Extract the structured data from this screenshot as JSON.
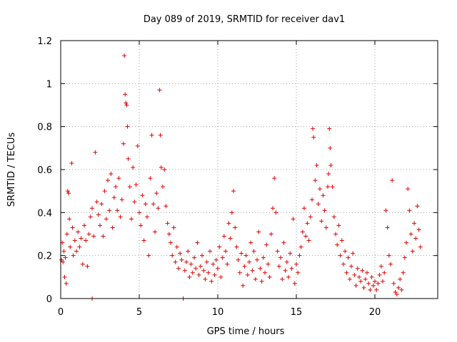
{
  "chart_data": {
    "type": "scatter",
    "title": "Day 089 of 2019, SRMTID for receiver dav1",
    "xlabel": "GPS time / hours",
    "ylabel": "SRMTID / TECUs",
    "xlim": [
      0,
      24
    ],
    "ylim": [
      0,
      1.2
    ],
    "x_ticks": [
      0,
      5,
      10,
      15,
      20
    ],
    "x_tick_labels": [
      "0",
      "5",
      "10",
      "15",
      "20"
    ],
    "y_ticks": [
      0,
      0.2,
      0.4,
      0.6,
      0.8,
      1.0,
      1.2
    ],
    "y_tick_labels": [
      "0",
      "0.2",
      "0.4",
      "0.6",
      "0.8",
      "1",
      "1.2"
    ],
    "grid": true,
    "marker": "+",
    "marker_color": "#e00000",
    "series": [
      {
        "name": "SRMTID",
        "points": [
          [
            0.05,
            0.18
          ],
          [
            0.1,
            0.26
          ],
          [
            0.15,
            0.17
          ],
          [
            0.2,
            0.22
          ],
          [
            0.25,
            0.1
          ],
          [
            0.3,
            0.19
          ],
          [
            0.35,
            0.07
          ],
          [
            0.4,
            0.3
          ],
          [
            0.45,
            0.5
          ],
          [
            0.5,
            0.49
          ],
          [
            0.55,
            0.37
          ],
          [
            0.6,
            0.24
          ],
          [
            0.7,
            0.63
          ],
          [
            0.75,
            0.33
          ],
          [
            0.8,
            0.2
          ],
          [
            0.9,
            0.27
          ],
          [
            1.0,
            0.22
          ],
          [
            1.1,
            0.31
          ],
          [
            1.2,
            0.24
          ],
          [
            1.3,
            0.28
          ],
          [
            1.4,
            0.16
          ],
          [
            1.5,
            0.34
          ],
          [
            1.6,
            0.27
          ],
          [
            1.7,
            0.15
          ],
          [
            1.8,
            0.3
          ],
          [
            1.9,
            0.38
          ],
          [
            2.0,
            0.42
          ],
          [
            2.0,
            0.0
          ],
          [
            2.1,
            0.29
          ],
          [
            2.2,
            0.68
          ],
          [
            2.3,
            0.45
          ],
          [
            2.4,
            0.39
          ],
          [
            2.5,
            0.34
          ],
          [
            2.6,
            0.44
          ],
          [
            2.7,
            0.29
          ],
          [
            2.8,
            0.5
          ],
          [
            2.9,
            0.37
          ],
          [
            3.0,
            0.55
          ],
          [
            3.1,
            0.41
          ],
          [
            3.2,
            0.58
          ],
          [
            3.3,
            0.33
          ],
          [
            3.4,
            0.47
          ],
          [
            3.5,
            0.52
          ],
          [
            3.6,
            0.41
          ],
          [
            3.7,
            0.56
          ],
          [
            3.8,
            0.38
          ],
          [
            3.9,
            0.46
          ],
          [
            4.0,
            0.72
          ],
          [
            4.05,
            1.13
          ],
          [
            4.1,
            0.95
          ],
          [
            4.15,
            0.91
          ],
          [
            4.2,
            0.9
          ],
          [
            4.25,
            0.8
          ],
          [
            4.3,
            0.65
          ],
          [
            4.4,
            0.52
          ],
          [
            4.5,
            0.37
          ],
          [
            4.6,
            0.61
          ],
          [
            4.7,
            0.45
          ],
          [
            4.8,
            0.53
          ],
          [
            4.9,
            0.71
          ],
          [
            5.0,
            0.4
          ],
          [
            5.1,
            0.34
          ],
          [
            5.2,
            0.48
          ],
          [
            5.3,
            0.27
          ],
          [
            5.4,
            0.44
          ],
          [
            5.5,
            0.38
          ],
          [
            5.6,
            0.2
          ],
          [
            5.7,
            0.56
          ],
          [
            5.8,
            0.76
          ],
          [
            5.9,
            0.44
          ],
          [
            6.0,
            0.31
          ],
          [
            6.1,
            0.49
          ],
          [
            6.2,
            0.42
          ],
          [
            6.3,
            0.97
          ],
          [
            6.35,
            0.76
          ],
          [
            6.4,
            0.61
          ],
          [
            6.5,
            0.52
          ],
          [
            6.6,
            0.6
          ],
          [
            6.7,
            0.43
          ],
          [
            6.8,
            0.35
          ],
          [
            6.9,
            0.3
          ],
          [
            7.0,
            0.26
          ],
          [
            7.1,
            0.2
          ],
          [
            7.2,
            0.33
          ],
          [
            7.3,
            0.17
          ],
          [
            7.4,
            0.24
          ],
          [
            7.5,
            0.14
          ],
          [
            7.6,
            0.21
          ],
          [
            7.7,
            0.18
          ],
          [
            7.8,
            0.0
          ],
          [
            7.9,
            0.13
          ],
          [
            8.0,
            0.17
          ],
          [
            8.1,
            0.22
          ],
          [
            8.2,
            0.1
          ],
          [
            8.3,
            0.16
          ],
          [
            8.4,
            0.12
          ],
          [
            8.5,
            0.19
          ],
          [
            8.6,
            0.14
          ],
          [
            8.7,
            0.26
          ],
          [
            8.8,
            0.11
          ],
          [
            8.9,
            0.15
          ],
          [
            9.0,
            0.2
          ],
          [
            9.1,
            0.13
          ],
          [
            9.2,
            0.09
          ],
          [
            9.3,
            0.17
          ],
          [
            9.4,
            0.12
          ],
          [
            9.5,
            0.22
          ],
          [
            9.6,
            0.08
          ],
          [
            9.7,
            0.16
          ],
          [
            9.8,
            0.11
          ],
          [
            9.9,
            0.18
          ],
          [
            10.0,
            0.14
          ],
          [
            10.1,
            0.24
          ],
          [
            10.2,
            0.1
          ],
          [
            10.3,
            0.19
          ],
          [
            10.4,
            0.29
          ],
          [
            10.5,
            0.22
          ],
          [
            10.6,
            0.16
          ],
          [
            10.7,
            0.35
          ],
          [
            10.8,
            0.28
          ],
          [
            10.9,
            0.4
          ],
          [
            11.0,
            0.5
          ],
          [
            11.1,
            0.33
          ],
          [
            11.2,
            0.24
          ],
          [
            11.3,
            0.18
          ],
          [
            11.4,
            0.12
          ],
          [
            11.5,
            0.21
          ],
          [
            11.6,
            0.06
          ],
          [
            11.7,
            0.15
          ],
          [
            11.8,
            0.2
          ],
          [
            11.9,
            0.11
          ],
          [
            12.0,
            0.17
          ],
          [
            12.1,
            0.26
          ],
          [
            12.2,
            0.13
          ],
          [
            12.3,
            0.22
          ],
          [
            12.4,
            0.09
          ],
          [
            12.5,
            0.18
          ],
          [
            12.6,
            0.31
          ],
          [
            12.7,
            0.14
          ],
          [
            12.8,
            0.08
          ],
          [
            12.9,
            0.19
          ],
          [
            13.0,
            0.12
          ],
          [
            13.1,
            0.25
          ],
          [
            13.2,
            0.16
          ],
          [
            13.3,
            0.1
          ],
          [
            13.4,
            0.3
          ],
          [
            13.5,
            0.42
          ],
          [
            13.6,
            0.56
          ],
          [
            13.7,
            0.4
          ],
          [
            13.8,
            0.22
          ],
          [
            13.9,
            0.15
          ],
          [
            14.0,
            0.19
          ],
          [
            14.1,
            0.09
          ],
          [
            14.2,
            0.26
          ],
          [
            14.3,
            0.13
          ],
          [
            14.4,
            0.17
          ],
          [
            14.5,
            0.1
          ],
          [
            14.6,
            0.21
          ],
          [
            14.7,
            0.14
          ],
          [
            14.8,
            0.37
          ],
          [
            14.9,
            0.07
          ],
          [
            15.0,
            0.16
          ],
          [
            15.1,
            0.12
          ],
          [
            15.2,
            0.2
          ],
          [
            15.3,
            0.24
          ],
          [
            15.4,
            0.31
          ],
          [
            15.5,
            0.42
          ],
          [
            15.6,
            0.29
          ],
          [
            15.7,
            0.35
          ],
          [
            15.8,
            0.27
          ],
          [
            15.9,
            0.38
          ],
          [
            16.0,
            0.46
          ],
          [
            16.05,
            0.79
          ],
          [
            16.1,
            0.75
          ],
          [
            16.2,
            0.55
          ],
          [
            16.3,
            0.62
          ],
          [
            16.4,
            0.44
          ],
          [
            16.5,
            0.51
          ],
          [
            16.6,
            0.36
          ],
          [
            16.7,
            0.48
          ],
          [
            16.8,
            0.41
          ],
          [
            16.9,
            0.33
          ],
          [
            17.0,
            0.52
          ],
          [
            17.05,
            0.58
          ],
          [
            17.1,
            0.79
          ],
          [
            17.15,
            0.7
          ],
          [
            17.2,
            0.62
          ],
          [
            17.3,
            0.52
          ],
          [
            17.4,
            0.38
          ],
          [
            17.5,
            0.3
          ],
          [
            17.6,
            0.25
          ],
          [
            17.7,
            0.34
          ],
          [
            17.8,
            0.2
          ],
          [
            17.9,
            0.27
          ],
          [
            18.0,
            0.16
          ],
          [
            18.1,
            0.22
          ],
          [
            18.2,
            0.12
          ],
          [
            18.3,
            0.19
          ],
          [
            18.4,
            0.09
          ],
          [
            18.5,
            0.15
          ],
          [
            18.6,
            0.21
          ],
          [
            18.7,
            0.11
          ],
          [
            18.8,
            0.06
          ],
          [
            18.9,
            0.14
          ],
          [
            19.0,
            0.1
          ],
          [
            19.1,
            0.08
          ],
          [
            19.2,
            0.13
          ],
          [
            19.3,
            0.05
          ],
          [
            19.4,
            0.09
          ],
          [
            19.5,
            0.12
          ],
          [
            19.6,
            0.07
          ],
          [
            19.7,
            0.04
          ],
          [
            19.8,
            0.1
          ],
          [
            19.9,
            0.06
          ],
          [
            20.0,
            0.08
          ],
          [
            20.1,
            0.04
          ],
          [
            20.2,
            0.07
          ],
          [
            20.3,
            0.11
          ],
          [
            20.4,
            0.15
          ],
          [
            20.5,
            0.08
          ],
          [
            20.6,
            0.12
          ],
          [
            20.7,
            0.41
          ],
          [
            20.8,
            0.33
          ],
          [
            20.9,
            0.2
          ],
          [
            21.0,
            0.16
          ],
          [
            21.1,
            0.55
          ],
          [
            21.2,
            0.07
          ],
          [
            21.3,
            0.03
          ],
          [
            21.4,
            0.02
          ],
          [
            21.5,
            0.05
          ],
          [
            21.6,
            0.09
          ],
          [
            21.7,
            0.04
          ],
          [
            21.8,
            0.12
          ],
          [
            21.9,
            0.19
          ],
          [
            22.0,
            0.26
          ],
          [
            22.1,
            0.51
          ],
          [
            22.2,
            0.41
          ],
          [
            22.3,
            0.3
          ],
          [
            22.4,
            0.22
          ],
          [
            22.5,
            0.35
          ],
          [
            22.6,
            0.28
          ],
          [
            22.7,
            0.43
          ],
          [
            22.8,
            0.32
          ],
          [
            22.9,
            0.24
          ]
        ]
      }
    ]
  }
}
